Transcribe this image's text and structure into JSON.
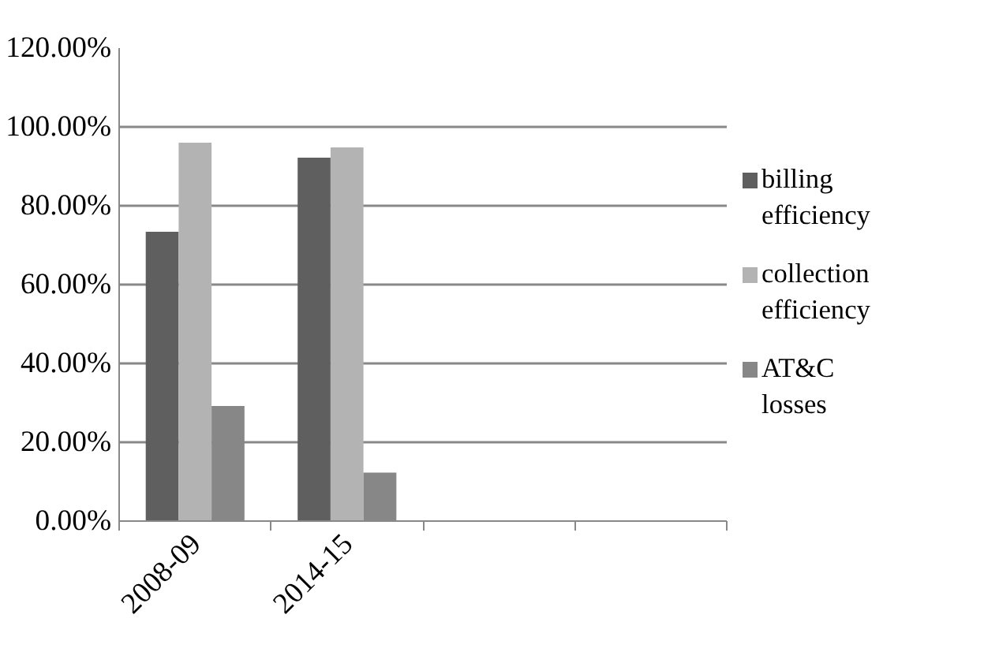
{
  "chart_data": {
    "type": "bar",
    "categories": [
      "2008-09",
      "2014-15",
      null,
      null
    ],
    "series": [
      {
        "name": "billing efficiency",
        "color": "#5f5f5f",
        "values": [
          73.4,
          92.2,
          null,
          null
        ]
      },
      {
        "name": "collection efficiency",
        "color": "#b3b3b3",
        "values": [
          96.0,
          94.8,
          null,
          null
        ]
      },
      {
        "name": "AT&C losses",
        "color": "#878787",
        "values": [
          29.2,
          12.3,
          null,
          null
        ]
      }
    ],
    "ylim": [
      0,
      120
    ],
    "yticks": [
      {
        "value": 0,
        "label": "0.00%"
      },
      {
        "value": 20,
        "label": "20.00%"
      },
      {
        "value": 40,
        "label": "40.00%"
      },
      {
        "value": 60,
        "label": "60.00%"
      },
      {
        "value": 80,
        "label": "80.00%"
      },
      {
        "value": 100,
        "label": "100.00%"
      },
      {
        "value": 120,
        "label": "120.00%"
      }
    ],
    "grid": "y",
    "legend": "right"
  }
}
